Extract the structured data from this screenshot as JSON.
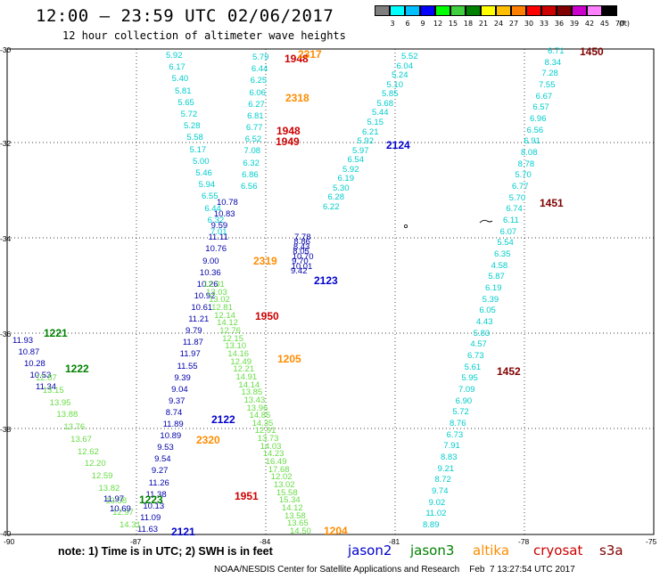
{
  "header": {
    "title": "12:00 – 23:59 UTC 02/06/2017",
    "subtitle": "12 hour collection of altimeter wave heights"
  },
  "colorbar": {
    "unit": "(ft)",
    "ticks": [
      "3",
      "6",
      "9",
      "12",
      "15",
      "18",
      "21",
      "24",
      "27",
      "30",
      "33",
      "36",
      "39",
      "42",
      "45",
      "70"
    ],
    "colors": [
      "#7f7f7f",
      "#00ffff",
      "#00bfff",
      "#0000ff",
      "#00ff00",
      "#3fcf3f",
      "#008000",
      "#ffff00",
      "#ffbf00",
      "#ff8000",
      "#ff0000",
      "#cc0000",
      "#800000",
      "#cc00cc",
      "#ff80ff",
      "#000000"
    ]
  },
  "axes": {
    "x_ticks": [
      "-90",
      "-87",
      "-84",
      "-81",
      "-78",
      "-75"
    ],
    "y_ticks": [
      "-30",
      "-32",
      "-34",
      "-36",
      "-38",
      "-40"
    ]
  },
  "colors": {
    "jason2": "#0000cc",
    "jason3": "#008000",
    "altika": "#ff8c00",
    "cryosat": "#cc0000",
    "s3a": "#800000",
    "cyan": "#00cccc",
    "lightgreen": "#66dd44",
    "darkblue": "#0000aa",
    "green": "#009900"
  },
  "passes": [
    {
      "id": "1450",
      "color": "s3a"
    },
    {
      "id": "1451",
      "color": "s3a"
    },
    {
      "id": "1452",
      "color": "s3a"
    },
    {
      "id": "1948",
      "color": "cryosat"
    },
    {
      "id": "1948b",
      "text": "1948",
      "color": "cryosat"
    },
    {
      "id": "1949",
      "color": "cryosat"
    },
    {
      "id": "1950",
      "color": "cryosat"
    },
    {
      "id": "1951",
      "color": "cryosat"
    },
    {
      "id": "2317",
      "color": "altika"
    },
    {
      "id": "2318",
      "color": "altika"
    },
    {
      "id": "2319",
      "color": "altika"
    },
    {
      "id": "2320",
      "color": "altika"
    },
    {
      "id": "1205",
      "color": "altika"
    },
    {
      "id": "1204",
      "color": "altika"
    },
    {
      "id": "2124",
      "color": "jason2"
    },
    {
      "id": "2123",
      "color": "jason2"
    },
    {
      "id": "2122",
      "color": "jason2"
    },
    {
      "id": "2121",
      "color": "jason2"
    },
    {
      "id": "1221",
      "color": "jason3"
    },
    {
      "id": "1222",
      "color": "jason3"
    },
    {
      "id": "1223",
      "color": "jason3"
    }
  ],
  "tracks": {
    "s3a_east": {
      "color": "cyan",
      "values": [
        "6.71",
        "8.34",
        "7.28",
        "7.55",
        "6.67",
        "6.57",
        "6.96",
        "6.56",
        "6.91",
        "8.08",
        "8.78",
        "5.70",
        "6.77",
        "5.70",
        "6.74",
        "6.11",
        "6.07",
        "5.54",
        "6.35",
        "4.58",
        "5.87",
        "6.19",
        "5.39",
        "6.05",
        "4.43",
        "5.83",
        "4.57",
        "6.73",
        "5.61",
        "5.95",
        "7.09",
        "6.90",
        "5.72",
        "8.76",
        "6.73",
        "7.91",
        "8.83",
        "9.21",
        "8.72",
        "9.74",
        "9.02",
        "11.02",
        "8.89"
      ]
    },
    "j2_2124": {
      "color": "cyan",
      "values": [
        "5.52",
        "6.04",
        "5.24",
        "5.10",
        "5.85",
        "5.68",
        "5.44",
        "5.15",
        "6.21",
        "5.92",
        "5.97",
        "6.54",
        "5.92",
        "6.19",
        "5.30",
        "6.28",
        "6.22"
      ]
    },
    "s3a_mid_cyan": {
      "color": "cyan",
      "values": [
        "5.92",
        "6.17",
        "5.40",
        "5.81",
        "5.65",
        "5.72",
        "5.28",
        "5.58",
        "5.17",
        "5.00",
        "5.46",
        "5.94",
        "6.55",
        "6.44",
        "6.32",
        "7.01"
      ]
    },
    "cryo_cyan": {
      "color": "cyan",
      "values": [
        "5.79",
        "6.44",
        "6.25",
        "6.06",
        "6.27",
        "6.81",
        "6.77",
        "6.52",
        "7.08",
        "6.32",
        "6.86",
        "6.56"
      ]
    },
    "j2_2123": {
      "color": "darkblue",
      "values": [
        "10.78",
        "10.83",
        "9.59",
        "11.11",
        "10.76",
        "9.00",
        "10.36",
        "10.26",
        "10.92",
        "10.61",
        "11.21",
        "9.79",
        "11.87",
        "11.97",
        "11.55",
        "9.39",
        "9.04",
        "9.37",
        "8.74",
        "11.89",
        "10.89",
        "9.53",
        "9.54",
        "9.27",
        "11.26",
        "11.38",
        "10.13",
        "11.09",
        "11.63"
      ]
    },
    "j2_2123b": {
      "color": "darkblue",
      "values": [
        "9.42",
        "10.01",
        "9.70",
        "10.70",
        "8.05",
        "8.43",
        "8.86",
        "7.78"
      ]
    },
    "j3_1221": {
      "color": "darkblue",
      "values": [
        "11.93",
        "10.87",
        "10.28",
        "10.53",
        "11.34"
      ]
    },
    "j3_1221_green": {
      "color": "lightgreen",
      "values": [
        "12.87",
        "13.15",
        "13.95",
        "13.88",
        "13.76",
        "13.67",
        "12.62",
        "12.20",
        "12.59",
        "13.82",
        "13.58",
        "12.97",
        "14.31"
      ]
    },
    "altika_green": {
      "color": "lightgreen",
      "values": [
        "12.31",
        "13.03",
        "13.02",
        "12.81",
        "12.14",
        "14.12",
        "12.76",
        "12.15",
        "13.10",
        "14.16",
        "12.49",
        "12.21",
        "14.91",
        "14.14",
        "13.85",
        "13.43",
        "13.96",
        "14.85",
        "14.35",
        "12.91",
        "13.73",
        "14.03",
        "14.23",
        "16.49",
        "17.68",
        "12.02",
        "13.02",
        "15.58",
        "15.34",
        "14.12",
        "13.58",
        "13.65",
        "14.50"
      ]
    },
    "j2_2122_blue": {
      "color": "darkblue",
      "values": [
        "11.97",
        "10.69"
      ]
    }
  },
  "note": "note: 1) Time is in UTC; 2) SWH is in feet",
  "legend": [
    {
      "label": "jason2",
      "color": "jason2"
    },
    {
      "label": "jason3",
      "color": "jason3"
    },
    {
      "label": "altika",
      "color": "altika"
    },
    {
      "label": "cryosat",
      "color": "cryosat"
    },
    {
      "label": "s3a",
      "color": "s3a"
    }
  ],
  "credit": "NOAA/NESDIS Center for Satellite Applications and Research    Feb  7 13:27:54 UTC 2017"
}
